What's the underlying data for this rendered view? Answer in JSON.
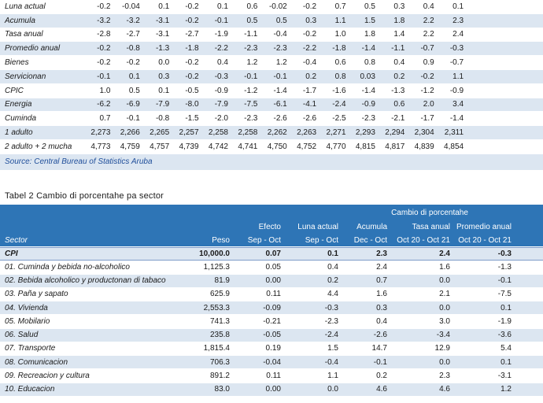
{
  "table1": {
    "rows": [
      {
        "label": "Luna actual",
        "values": [
          "-0.2",
          "-0.04",
          "0.1",
          "-0.2",
          "0.1",
          "0.6",
          "-0.02",
          "-0.2",
          "0.7",
          "0.5",
          "0.3",
          "0.4",
          "0.1"
        ]
      },
      {
        "label": "Acumula",
        "values": [
          "-3.2",
          "-3.2",
          "-3.1",
          "-0.2",
          "-0.1",
          "0.5",
          "0.5",
          "0.3",
          "1.1",
          "1.5",
          "1.8",
          "2.2",
          "2.3"
        ]
      },
      {
        "label": "Tasa anual",
        "values": [
          "-2.8",
          "-2.7",
          "-3.1",
          "-2.7",
          "-1.9",
          "-1.1",
          "-0.4",
          "-0.2",
          "1.0",
          "1.8",
          "1.4",
          "2.2",
          "2.4"
        ]
      },
      {
        "label": "Promedio anual",
        "values": [
          "-0.2",
          "-0.8",
          "-1.3",
          "-1.8",
          "-2.2",
          "-2.3",
          "-2.3",
          "-2.2",
          "-1.8",
          "-1.4",
          "-1.1",
          "-0.7",
          "-0.3"
        ]
      },
      {
        "label": "Bienes",
        "values": [
          "-0.2",
          "-0.2",
          "0.0",
          "-0.2",
          "0.4",
          "1.2",
          "1.2",
          "-0.4",
          "0.6",
          "0.8",
          "0.4",
          "0.9",
          "-0.7"
        ]
      },
      {
        "label": "Servicionan",
        "values": [
          "-0.1",
          "0.1",
          "0.3",
          "-0.2",
          "-0.3",
          "-0.1",
          "-0.1",
          "0.2",
          "0.8",
          "0.03",
          "0.2",
          "-0.2",
          "1.1"
        ]
      },
      {
        "label": "CPIC",
        "values": [
          "1.0",
          "0.5",
          "0.1",
          "-0.5",
          "-0.9",
          "-1.2",
          "-1.4",
          "-1.7",
          "-1.6",
          "-1.4",
          "-1.3",
          "-1.2",
          "-0.9"
        ]
      },
      {
        "label": "Energia",
        "values": [
          "-6.2",
          "-6.9",
          "-7.9",
          "-8.0",
          "-7.9",
          "-7.5",
          "-6.1",
          "-4.1",
          "-2.4",
          "-0.9",
          "0.6",
          "2.0",
          "3.4"
        ]
      },
      {
        "label": "Cuminda",
        "values": [
          "0.7",
          "-0.1",
          "-0.8",
          "-1.5",
          "-2.0",
          "-2.3",
          "-2.6",
          "-2.6",
          "-2.5",
          "-2.3",
          "-2.1",
          "-1.7",
          "-1.4"
        ]
      },
      {
        "label": "1 adulto",
        "values": [
          "2,273",
          "2,266",
          "2,265",
          "2,257",
          "2,258",
          "2,258",
          "2,262",
          "2,263",
          "2,271",
          "2,293",
          "2,294",
          "2,304",
          "2,311"
        ]
      },
      {
        "label": "2 adulto + 2 mucha",
        "values": [
          "4,773",
          "4,759",
          "4,757",
          "4,739",
          "4,742",
          "4,741",
          "4,750",
          "4,752",
          "4,770",
          "4,815",
          "4,817",
          "4,839",
          "4,854"
        ]
      }
    ],
    "source": "Source: Central Bureau of Statistics Aruba"
  },
  "table2": {
    "title": "Tabel 2 Cambio di porcentahe pa sector",
    "group_header": "Cambio di porcentahe",
    "headers": {
      "sector": "Sector",
      "peso": "Peso",
      "efecto": [
        "Efecto",
        "Sep - Oct"
      ],
      "luna": [
        "Luna actual",
        "Sep - Oct"
      ],
      "acumula": [
        "Acumula",
        "Dec - Oct"
      ],
      "tasa": [
        "Tasa anual",
        "Oct 20 - Oct 21"
      ],
      "promedio": [
        "Promedio anual",
        "Oct 20 - Oct 21"
      ]
    },
    "rows": [
      {
        "sector": "CPI",
        "peso": "10,000.0",
        "efecto": "0.07",
        "luna": "0.1",
        "acumula": "2.3",
        "tasa": "2.4",
        "promedio": "-0.3"
      },
      {
        "sector": "01. Cuminda y bebida no-alcoholico",
        "peso": "1,125.3",
        "efecto": "0.05",
        "luna": "0.4",
        "acumula": "2.4",
        "tasa": "1.6",
        "promedio": "-1.3"
      },
      {
        "sector": "02. Bebida alcoholico y productonan di tabaco",
        "peso": "81.9",
        "efecto": "0.00",
        "luna": "0.2",
        "acumula": "0.7",
        "tasa": "0.0",
        "promedio": "-0.1"
      },
      {
        "sector": "03. Paña y sapato",
        "peso": "625.9",
        "efecto": "0.11",
        "luna": "4.4",
        "acumula": "1.6",
        "tasa": "2.1",
        "promedio": "-7.5"
      },
      {
        "sector": "04. Vivienda",
        "peso": "2,553.3",
        "efecto": "-0.09",
        "luna": "-0.3",
        "acumula": "0.3",
        "tasa": "0.0",
        "promedio": "0.1"
      },
      {
        "sector": "05. Mobilario",
        "peso": "741.3",
        "efecto": "-0.21",
        "luna": "-2.3",
        "acumula": "0.4",
        "tasa": "3.0",
        "promedio": "-1.9"
      },
      {
        "sector": "06. Salud",
        "peso": "235.8",
        "efecto": "-0.05",
        "luna": "-2.4",
        "acumula": "-2.6",
        "tasa": "-3.4",
        "promedio": "-3.6"
      },
      {
        "sector": "07. Transporte",
        "peso": "1,815.4",
        "efecto": "0.19",
        "luna": "1.5",
        "acumula": "14.7",
        "tasa": "12.9",
        "promedio": "5.4"
      },
      {
        "sector": "08. Comunicacion",
        "peso": "706.3",
        "efecto": "-0.04",
        "luna": "-0.4",
        "acumula": "-0.1",
        "tasa": "0.0",
        "promedio": "0.1"
      },
      {
        "sector": "09. Recreacion y cultura",
        "peso": "891.2",
        "efecto": "0.11",
        "luna": "1.1",
        "acumula": "0.2",
        "tasa": "2.3",
        "promedio": "-3.1"
      },
      {
        "sector": "10. Educacion",
        "peso": "83.0",
        "efecto": "0.00",
        "luna": "0.0",
        "acumula": "4.6",
        "tasa": "4.6",
        "promedio": "1.2"
      }
    ]
  }
}
